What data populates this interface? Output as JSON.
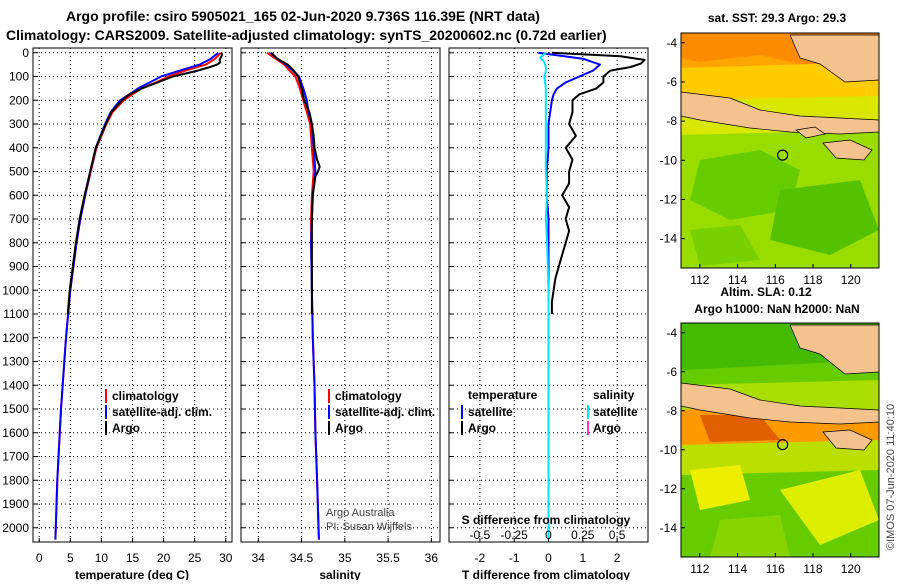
{
  "header": {
    "line1": "Argo profile: csiro 5905021_165 02-Jun-2020 9.736S 116.39E (NRT data)",
    "line2": "Climatology: CARS2009. Satellite-adjusted climatology: synTS_20200602.nc (0.72d earlier)"
  },
  "colors": {
    "climatology": "#ff0000",
    "satellite": "#0000ff",
    "argo": "#000000",
    "sat_salinity": "#00e5ff",
    "argo_salinity_diff": "#ff33cc"
  },
  "depth_ticks": [
    "0",
    "100",
    "200",
    "300",
    "400",
    "500",
    "600",
    "700",
    "800",
    "900",
    "1000",
    "1100",
    "1200",
    "1300",
    "1400",
    "1500",
    "1600",
    "1700",
    "1800",
    "1900",
    "2000"
  ],
  "chart_data": [
    {
      "type": "line",
      "panel": "temperature",
      "xlabel": "temperature (deg C)",
      "ylabel": "depth",
      "xlim": [
        -1,
        31
      ],
      "ylim": [
        2060,
        -20
      ],
      "xticks": [
        "0",
        "5",
        "10",
        "15",
        "20",
        "25",
        "30"
      ],
      "legend": {
        "climatology": "climatology",
        "satellite": "satellite-adj. clim.",
        "argo": "Argo"
      },
      "series": [
        {
          "name": "climatology",
          "depth": [
            0,
            25,
            50,
            75,
            100,
            125,
            150,
            175,
            200,
            250,
            300,
            400,
            500,
            600,
            700,
            800,
            1000,
            1200,
            1500,
            1800,
            2050
          ],
          "values": [
            29.2,
            28.3,
            26.8,
            23.5,
            20.8,
            18.8,
            16.5,
            15.0,
            13.6,
            11.8,
            10.8,
            9.2,
            8.3,
            7.4,
            6.6,
            6.0,
            5.0,
            4.3,
            3.5,
            2.9,
            2.6
          ]
        },
        {
          "name": "satellite-adj. clim.",
          "depth": [
            0,
            25,
            50,
            75,
            100,
            125,
            150,
            175,
            200,
            250,
            300,
            400,
            500,
            600,
            700,
            800,
            1000,
            1200,
            1500,
            1800,
            2050
          ],
          "values": [
            28.8,
            27.6,
            25.8,
            22.6,
            19.6,
            17.8,
            15.9,
            14.5,
            13.0,
            11.5,
            10.6,
            9.1,
            8.2,
            7.4,
            6.6,
            6.0,
            5.0,
            4.3,
            3.5,
            2.9,
            2.6
          ]
        },
        {
          "name": "Argo",
          "depth": [
            0,
            10,
            20,
            30,
            40,
            50,
            60,
            75,
            100,
            125,
            150,
            175,
            200,
            250,
            300,
            400,
            500,
            600,
            700,
            800,
            1000,
            1100
          ],
          "values": [
            29.3,
            29.4,
            29.2,
            29.0,
            29.1,
            28.6,
            27.5,
            25.5,
            21.5,
            19.0,
            16.5,
            14.5,
            13.3,
            11.6,
            10.7,
            9.1,
            8.2,
            7.3,
            6.5,
            5.9,
            4.9,
            4.6
          ]
        }
      ]
    },
    {
      "type": "line",
      "panel": "salinity",
      "xlabel": "salinity",
      "ylabel": "depth",
      "xlim": [
        33.8,
        36.1
      ],
      "ylim": [
        2060,
        -20
      ],
      "xticks": [
        "34",
        "34.5",
        "35",
        "35.5",
        "36"
      ],
      "legend": {
        "climatology": "climatology",
        "satellite": "satellite-adj. clim.",
        "argo": "Argo"
      },
      "credits": [
        "Argo Australia",
        "PI: Susan Wijffels"
      ],
      "series": [
        {
          "name": "climatology",
          "depth": [
            0,
            25,
            50,
            75,
            100,
            150,
            200,
            250,
            300,
            400,
            500,
            600,
            700,
            800,
            1000,
            1200,
            1400,
            1600,
            1800,
            2050
          ],
          "values": [
            34.1,
            34.2,
            34.3,
            34.36,
            34.43,
            34.48,
            34.52,
            34.56,
            34.6,
            34.62,
            34.64,
            34.62,
            34.61,
            34.61,
            34.62,
            34.63,
            34.65,
            34.66,
            34.68,
            34.7
          ]
        },
        {
          "name": "satellite-adj. clim.",
          "depth": [
            0,
            25,
            50,
            75,
            100,
            150,
            200,
            250,
            300,
            400,
            500,
            600,
            700,
            800,
            1000,
            1200,
            1400,
            1600,
            1800,
            2050
          ],
          "values": [
            34.14,
            34.22,
            34.32,
            34.4,
            34.47,
            34.52,
            34.56,
            34.58,
            34.62,
            34.64,
            34.66,
            34.63,
            34.62,
            34.61,
            34.62,
            34.63,
            34.65,
            34.66,
            34.68,
            34.7
          ]
        },
        {
          "name": "Argo",
          "depth": [
            0,
            25,
            50,
            75,
            100,
            150,
            200,
            250,
            300,
            350,
            400,
            450,
            480,
            500,
            520,
            600,
            700,
            800,
            1000,
            1100
          ],
          "values": [
            34.15,
            34.22,
            34.34,
            34.41,
            34.46,
            34.5,
            34.53,
            34.59,
            34.62,
            34.64,
            34.65,
            34.68,
            34.71,
            34.69,
            34.66,
            34.63,
            34.62,
            34.62,
            34.62,
            34.62
          ]
        }
      ]
    },
    {
      "type": "line",
      "panel": "difference",
      "xlabel": "T difference from climatology",
      "ylabel": "depth",
      "xlim": [
        -2.9,
        2.9
      ],
      "ylim": [
        2060,
        -20
      ],
      "xticks": [
        "-2",
        "-1",
        "0",
        "1",
        "2"
      ],
      "top_xlabel": "S difference from climatology",
      "top_xticks": [
        "-0.5",
        "-0.25",
        "0",
        "0.25",
        "0.5"
      ],
      "top_xlim": [
        -0.725,
        0.725
      ],
      "legend": {
        "temperature": "temperature",
        "salinity": "salinity",
        "satellite": "satellite",
        "argo": "Argo"
      },
      "series": [
        {
          "name": "T satellite",
          "depth": [
            0,
            25,
            50,
            75,
            100,
            125,
            150,
            175,
            200,
            250,
            300,
            400,
            500,
            600,
            700,
            800,
            1000,
            1200,
            1500,
            1800,
            2050
          ],
          "values": [
            -0.3,
            1.0,
            1.5,
            1.3,
            0.9,
            0.5,
            0.25,
            0.15,
            0.1,
            0.05,
            0.0,
            0.0,
            -0.05,
            -0.05,
            0,
            0,
            0,
            0,
            0,
            0,
            0
          ]
        },
        {
          "name": "T Argo",
          "depth": [
            0,
            15,
            30,
            45,
            60,
            75,
            100,
            125,
            150,
            175,
            200,
            250,
            300,
            350,
            400,
            450,
            500,
            550,
            600,
            650,
            700,
            750,
            800,
            850,
            900,
            950,
            1000,
            1050,
            1100
          ],
          "values": [
            0.1,
            2.1,
            2.8,
            2.7,
            2.4,
            1.8,
            1.6,
            1.6,
            1.4,
            0.9,
            0.7,
            0.7,
            0.6,
            0.8,
            0.5,
            0.7,
            0.6,
            0.6,
            0.4,
            0.6,
            0.5,
            0.6,
            0.5,
            0.4,
            0.3,
            0.2,
            0.15,
            0.1,
            0.1
          ]
        },
        {
          "name": "S satellite",
          "depth": [
            0,
            20,
            40,
            60,
            80,
            100,
            150,
            200,
            300,
            400,
            500,
            600,
            700,
            800,
            1000,
            1200,
            1500,
            1800,
            2050
          ],
          "values": [
            -0.02,
            -0.06,
            -0.03,
            -0.02,
            -0.02,
            -0.03,
            -0.02,
            -0.02,
            -0.02,
            -0.02,
            -0.02,
            -0.01,
            -0.02,
            -0.01,
            0,
            0,
            0,
            0,
            0
          ]
        },
        {
          "name": "S Argo",
          "depth": [
            0,
            2
          ],
          "values": [
            0,
            0
          ]
        }
      ]
    }
  ],
  "maps": [
    {
      "title": "sat. SST: 29.3 Argo: 29.3",
      "lon_ticks": [
        "112",
        "114",
        "116",
        "118",
        "120"
      ],
      "lat_ticks": [
        "-4",
        "-6",
        "-8",
        "-10",
        "-12",
        "-14"
      ],
      "lon_range": [
        111.0,
        121.5
      ],
      "lat_range": [
        -15.5,
        -3.5
      ],
      "profile_lon": 116.39,
      "profile_lat": -9.736
    },
    {
      "title_top": "Altim. SLA: 0.12",
      "title": "Argo h1000: NaN h2000: NaN",
      "lon_ticks": [
        "112",
        "114",
        "116",
        "118",
        "120"
      ],
      "lat_ticks": [
        "-4",
        "-6",
        "-8",
        "-10",
        "-12",
        "-14"
      ],
      "lon_range": [
        111.0,
        121.5
      ],
      "lat_range": [
        -15.5,
        -3.5
      ],
      "profile_lon": 116.39,
      "profile_lat": -9.736
    }
  ],
  "credit": "©IMOS 07-Jun-2020 11:40:10"
}
